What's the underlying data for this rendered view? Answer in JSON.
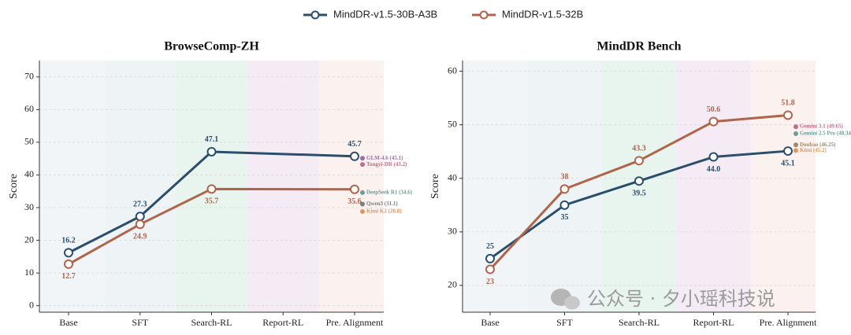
{
  "chart_data": [
    {
      "type": "line",
      "title": "BrowseComp-ZH",
      "y_label": "Score",
      "categories": [
        "Base",
        "SFT",
        "Search-RL",
        "Report-RL",
        "Pre. Alignment"
      ],
      "band_colors": [
        "#f2f5f8",
        "#eef4f5",
        "#e8f5ee",
        "#f5ebf5",
        "#fbf1ef"
      ],
      "ylim": [
        -2,
        75
      ],
      "yticks": [
        0,
        10,
        20,
        30,
        40,
        50,
        60,
        70
      ],
      "grid": true,
      "series": [
        {
          "name": "MindDR-v1.5-30B-A3B",
          "color": "#2b4e6c",
          "x": [
            "Base",
            "SFT",
            "Search-RL",
            "Pre. Alignment"
          ],
          "values": [
            16.2,
            27.3,
            47.1,
            45.7
          ]
        },
        {
          "name": "MindDR-v1.5-32B",
          "color": "#b0644a",
          "x": [
            "Base",
            "SFT",
            "Search-RL",
            "Pre. Alignment"
          ],
          "values": [
            12.7,
            24.9,
            35.7,
            35.6
          ]
        }
      ],
      "references": [
        {
          "label": "GLM-4.6 (45.1)",
          "value": 45.1,
          "color": "#9a6fa3"
        },
        {
          "label": "Tongyi-DR (43.2)",
          "value": 43.2,
          "color": "#c46b8c"
        },
        {
          "label": "DeepSeek R1 (34.6)",
          "value": 34.6,
          "color": "#6d9c97"
        },
        {
          "label": "Qwen3 (31.1)",
          "value": 31.1,
          "color": "#7f7f7f"
        },
        {
          "label": "Kimi K2 (28.8)",
          "value": 28.8,
          "color": "#e0955e"
        }
      ]
    },
    {
      "type": "line",
      "title": "MindDR Bench",
      "y_label": "Score",
      "categories": [
        "Base",
        "SFT",
        "Search-RL",
        "Report-RL",
        "Pre. Alignment"
      ],
      "band_colors": [
        "#f2f5f8",
        "#eef4f5",
        "#e8f5ee",
        "#f5ebf5",
        "#fbf1ef"
      ],
      "ylim": [
        15,
        62
      ],
      "yticks": [
        20,
        30,
        40,
        50,
        60
      ],
      "grid": true,
      "series": [
        {
          "color": "#2b4e6c",
          "values": [
            25,
            35,
            39.5,
            44.0,
            45.1
          ],
          "value_labels": [
            "25",
            "35",
            "39.5",
            "44.0",
            "45.1"
          ]
        },
        {
          "color": "#b0644a",
          "values": [
            23,
            38,
            43.3,
            50.6,
            51.8
          ]
        }
      ],
      "references": [
        {
          "label": "Gemini 3.1 (49.65)",
          "value": 49.65,
          "color": "#c46b8c"
        },
        {
          "label": "Gemini 2.5 Pro (48.34)",
          "value": 48.34,
          "color": "#6d9c97"
        },
        {
          "label": "Doubao (46.25)",
          "value": 46.25,
          "color": "#a08a6a"
        },
        {
          "label": "Kimi (45.2)",
          "value": 45.2,
          "color": "#e0955e"
        }
      ]
    }
  ],
  "watermark": "公众号 · 夕小瑶科技说"
}
